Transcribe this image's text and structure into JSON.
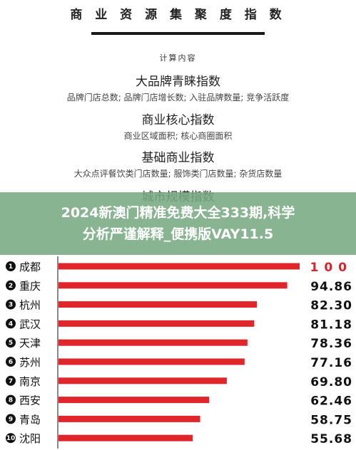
{
  "header": {
    "title": "商 业 资 源 集 聚 度 指 数",
    "calc_label": "计算内容",
    "sections": [
      {
        "title": "大品牌青睐指数",
        "subtitle": "品牌门店总数; 品牌门店增长数; 入驻品牌数量; 竞争活跃度"
      },
      {
        "title": "商业核心指数",
        "subtitle": "商业区域面积; 核心商圈面积"
      },
      {
        "title": "基础商业指数",
        "subtitle": "大众点评餐饮类门店数量; 服饰类门店数量; 杂货店数量"
      },
      {
        "title": "城市规模指数",
        "subtitle": ""
      }
    ]
  },
  "banner": {
    "line1": "2024新澳门精准免费大全333期,科学",
    "line2": "分析严谨解释_便携版VAY11.5"
  },
  "colors": {
    "bar": "#e0262b",
    "rank_circle": "#111111",
    "banner": "#78aa82"
  },
  "chart_data": {
    "type": "bar",
    "orientation": "horizontal",
    "categories": [
      "成都",
      "重庆",
      "杭州",
      "武汉",
      "天津",
      "苏州",
      "南京",
      "西安",
      "青岛",
      "沈阳"
    ],
    "ranks": [
      "1",
      "2",
      "3",
      "4",
      "5",
      "6",
      "7",
      "8",
      "9",
      "10"
    ],
    "values": [
      100,
      94.86,
      82.3,
      81.18,
      78.36,
      77.16,
      69.8,
      62.46,
      58.75,
      55.68
    ],
    "value_labels": [
      "100",
      "94.86",
      "82.30",
      "81.18",
      "78.36",
      "77.16",
      "69.80",
      "62.46",
      "58.75",
      "55.68"
    ],
    "xlim": [
      0,
      100
    ],
    "grid": false
  }
}
